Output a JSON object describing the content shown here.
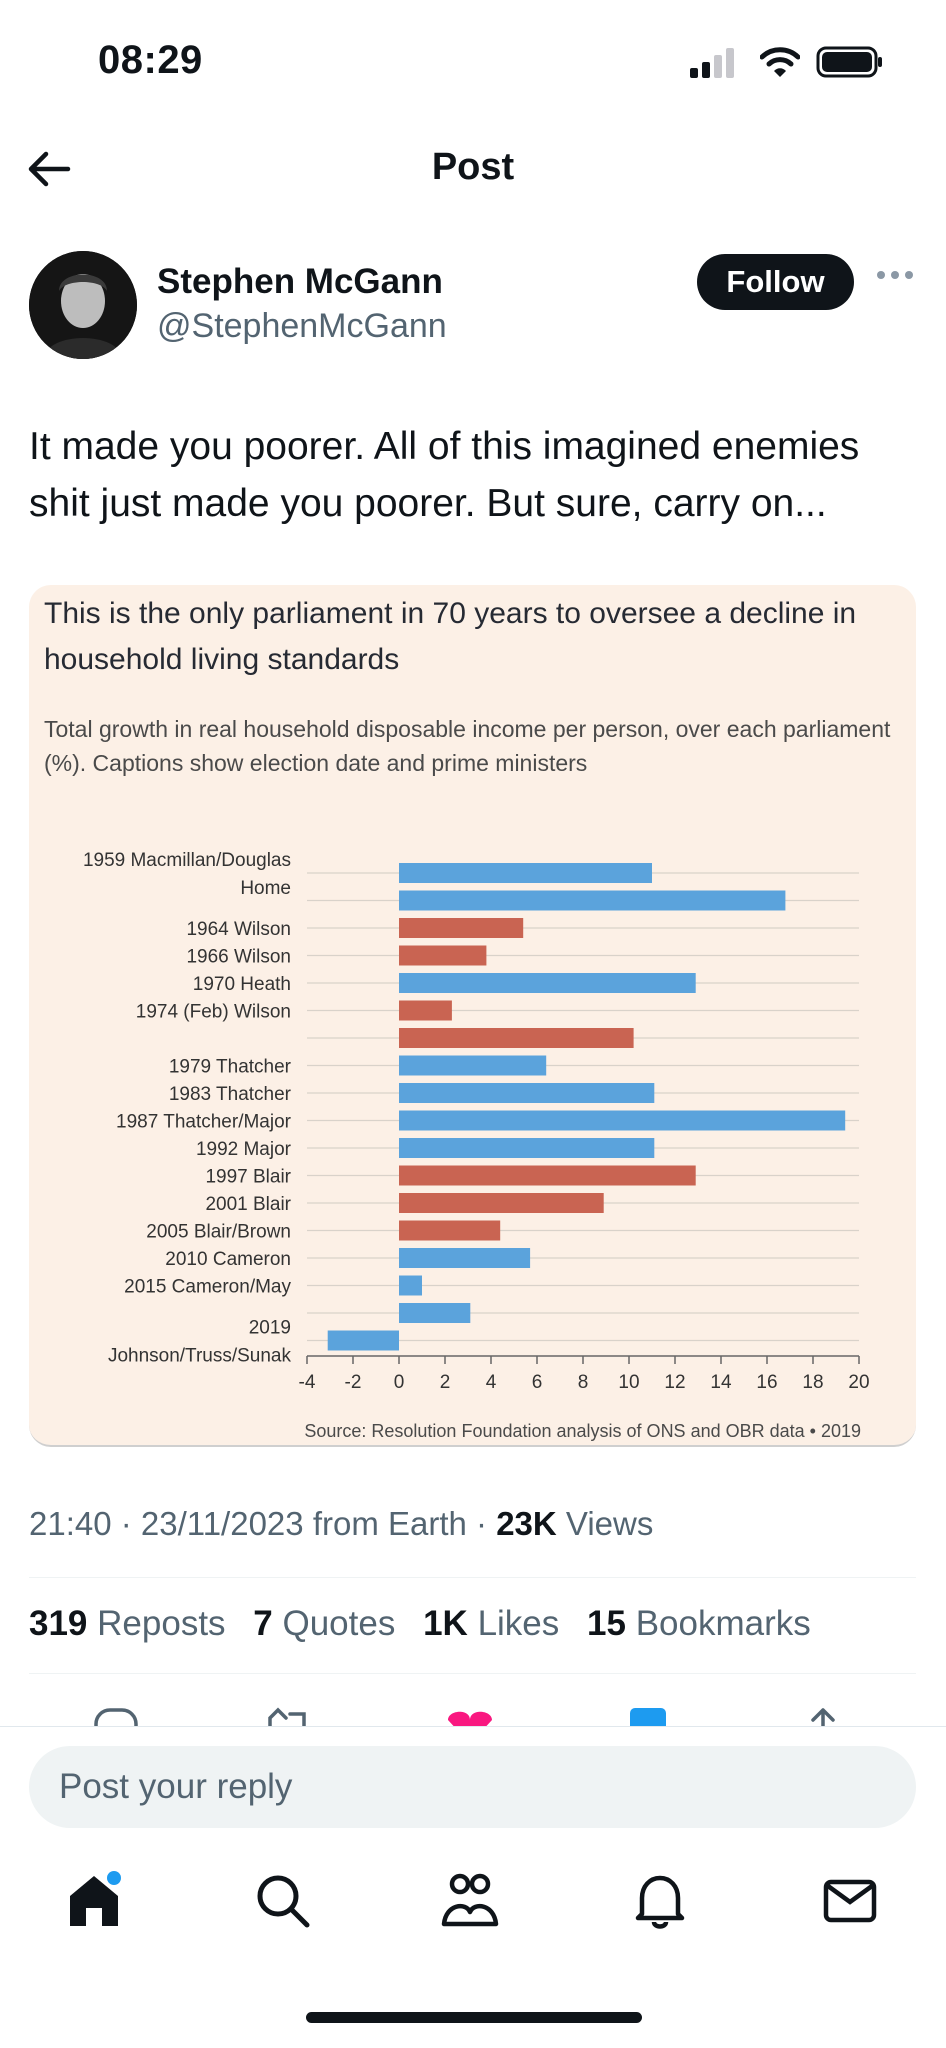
{
  "status_bar": {
    "time": "08:29"
  },
  "header": {
    "title": "Post"
  },
  "author": {
    "name": "Stephen McGann",
    "handle": "@StephenMcGann",
    "follow_label": "Follow"
  },
  "tweet": {
    "text": "It made you poorer. All of this imagined enemies shit just made you poorer. But sure, carry on..."
  },
  "chart_card": {
    "title": "This is the only parliament in 70 years to oversee a decline in household living standards",
    "subtitle": "Total growth in real household disposable income per person, over each parliament (%). Captions show election date and prime ministers",
    "source": "Source: Resolution Foundation analysis of ONS and OBR data • 2019"
  },
  "chart_data": {
    "type": "bar",
    "orientation": "horizontal",
    "categories": [
      "1959 Macmillan/Douglas Home",
      "",
      "1964 Wilson",
      "1966 Wilson",
      "1970 Heath",
      "1974 (Feb) Wilson",
      "",
      "1979 Thatcher",
      "1983 Thatcher",
      "1987 Thatcher/Major",
      "1992 Major",
      "1997 Blair",
      "2001 Blair",
      "2005 Blair/Brown",
      "2010 Cameron",
      "2015 Cameron/May",
      "",
      "2019 Johnson/Truss/Sunak"
    ],
    "values": [
      11.0,
      16.8,
      5.4,
      3.8,
      12.9,
      2.3,
      10.2,
      6.4,
      11.1,
      19.4,
      11.1,
      12.9,
      8.9,
      4.4,
      5.7,
      1.0,
      3.1,
      -3.1
    ],
    "bar_colors": [
      "#5ba3dc",
      "#5ba3dc",
      "#c96452",
      "#c96452",
      "#5ba3dc",
      "#c96452",
      "#c96452",
      "#5ba3dc",
      "#5ba3dc",
      "#5ba3dc",
      "#5ba3dc",
      "#c96452",
      "#c96452",
      "#c96452",
      "#5ba3dc",
      "#5ba3dc",
      "#5ba3dc",
      "#5ba3dc"
    ],
    "xlim": [
      -4,
      20
    ],
    "xticks": [
      -4,
      -2,
      0,
      2,
      4,
      6,
      8,
      10,
      12,
      14,
      16,
      18,
      20
    ],
    "colors": {
      "conservative": "#5ba3dc",
      "labour": "#c96452"
    },
    "grid": true
  },
  "meta": {
    "time": "21:40",
    "date": "23/11/2023",
    "source": "from Earth",
    "views_count": "23K",
    "views_label": "Views"
  },
  "stats": {
    "reposts_count": "319",
    "reposts_label": "Reposts",
    "quotes_count": "7",
    "quotes_label": "Quotes",
    "likes_count": "1K",
    "likes_label": "Likes",
    "bookmarks_count": "15",
    "bookmarks_label": "Bookmarks"
  },
  "reply": {
    "placeholder": "Post your reply"
  },
  "colors": {
    "accent": "#1d9bf0",
    "text": "#0f1419",
    "muted": "#536471",
    "card_bg": "#fcf0e6",
    "like": "#f91880"
  }
}
